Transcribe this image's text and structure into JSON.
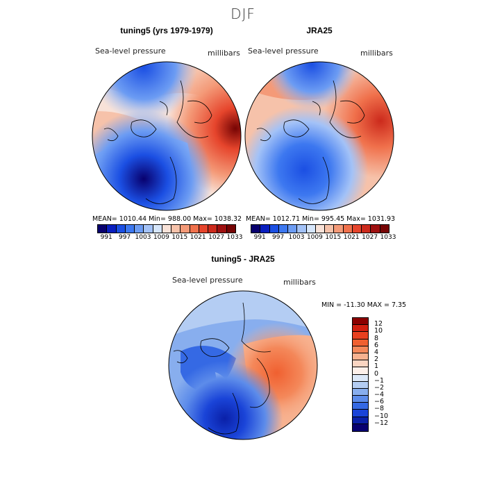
{
  "figure": {
    "season": "DJF"
  },
  "panels": [
    {
      "title": "tuning5 (yrs 1979-1979)",
      "field": "Sea-level pressure",
      "units": "millibars",
      "stats": "MEAN= 1010.44   Min= 988.00   Max= 1038.32"
    },
    {
      "title": "JRA25",
      "field": "Sea-level pressure",
      "units": "millibars",
      "stats": "MEAN= 1012.71   Min= 995.45   Max= 1031.93"
    },
    {
      "title": "tuning5 - JRA25",
      "field": "Sea-level pressure",
      "units": "millibars",
      "stats": "MIN = -11.30 MAX =   7.35"
    }
  ],
  "colorbar_abs": {
    "ticks": [
      "991",
      "997",
      "1003",
      "1009",
      "1015",
      "1021",
      "1027",
      "1033"
    ],
    "colors": [
      "#08006e",
      "#0a1fbf",
      "#1b4fe3",
      "#3d78f0",
      "#6c9cf3",
      "#a3c2f7",
      "#d6e6fb",
      "#f8e2d8",
      "#f6c2aa",
      "#f49a78",
      "#f0714c",
      "#e6452c",
      "#cc2a1c",
      "#9e1010",
      "#760404"
    ]
  },
  "colorbar_diff": {
    "ticks": [
      "12",
      "10",
      "8",
      "6",
      "4",
      "2",
      "1",
      "0",
      "−1",
      "−2",
      "−4",
      "−6",
      "−8",
      "−10",
      "−12"
    ],
    "colors": [
      "#8b0000",
      "#d11f10",
      "#e8401f",
      "#f06030",
      "#f4885a",
      "#f7b290",
      "#fad5c2",
      "#fdf0ea",
      "#dce8f8",
      "#b4cdf3",
      "#88aeee",
      "#5d8cea",
      "#3569e4",
      "#1a44d8",
      "#0a20a8",
      "#080070"
    ]
  }
}
